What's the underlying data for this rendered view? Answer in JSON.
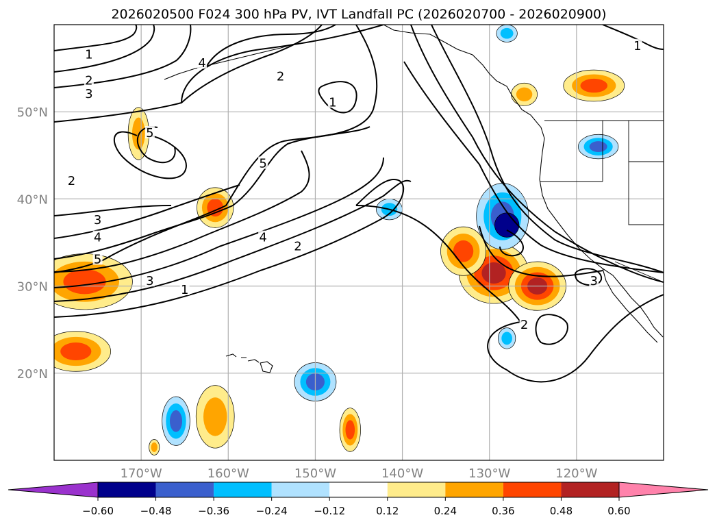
{
  "title": "2026020500 F024 300 hPa PV, IVT Landfall PC (2026020700 - 2026020900)",
  "map": {
    "lon_range": [
      -180,
      -110
    ],
    "lat_range": [
      10,
      60
    ],
    "lon_ticks": [
      {
        "value": -170,
        "label": "170°W"
      },
      {
        "value": -160,
        "label": "160°W"
      },
      {
        "value": -150,
        "label": "150°W"
      },
      {
        "value": -140,
        "label": "140°W"
      },
      {
        "value": -130,
        "label": "130°W"
      },
      {
        "value": -120,
        "label": "120°W"
      }
    ],
    "lat_ticks": [
      {
        "value": 20,
        "label": "20°N"
      },
      {
        "value": 30,
        "label": "30°N"
      },
      {
        "value": 40,
        "label": "40°N"
      },
      {
        "value": 50,
        "label": "50°N"
      }
    ]
  },
  "pv_contours": {
    "levels": [
      1,
      2,
      3,
      4,
      5
    ],
    "labels": [
      {
        "text": "1",
        "lon": -176,
        "lat": 56.5
      },
      {
        "text": "2",
        "lon": -176,
        "lat": 53.5
      },
      {
        "text": "3",
        "lon": -176,
        "lat": 52
      },
      {
        "text": "4",
        "lon": -163,
        "lat": 55.5
      },
      {
        "text": "2",
        "lon": -154,
        "lat": 54
      },
      {
        "text": "1",
        "lon": -148,
        "lat": 51
      },
      {
        "text": "5",
        "lon": -169,
        "lat": 47.5
      },
      {
        "text": "5",
        "lon": -156,
        "lat": 44
      },
      {
        "text": "2",
        "lon": -178,
        "lat": 42
      },
      {
        "text": "3",
        "lon": -175,
        "lat": 37.5
      },
      {
        "text": "4",
        "lon": -175,
        "lat": 35.5
      },
      {
        "text": "5",
        "lon": -175,
        "lat": 33
      },
      {
        "text": "4",
        "lon": -156,
        "lat": 35.5
      },
      {
        "text": "2",
        "lon": -152,
        "lat": 34.5
      },
      {
        "text": "3",
        "lon": -169,
        "lat": 30.5
      },
      {
        "text": "1",
        "lon": -165,
        "lat": 29.5
      },
      {
        "text": "1",
        "lon": -113,
        "lat": 57.5
      },
      {
        "text": "3",
        "lon": -118,
        "lat": 30.5
      },
      {
        "text": "2",
        "lon": -126,
        "lat": 25.5
      }
    ]
  },
  "ivt_pc": {
    "units": "",
    "colorbar": {
      "boundaries": [
        -0.72,
        -0.6,
        -0.48,
        -0.36,
        -0.24,
        -0.12,
        0.12,
        0.24,
        0.36,
        0.48,
        0.6,
        0.72
      ],
      "colors": [
        "#9a32cd",
        "#00008b",
        "#3a5fcd",
        "#00bfff",
        "#b0e2ff",
        "#ffffff",
        "#ffec8b",
        "#ffa500",
        "#ff4500",
        "#b22222",
        "#ff82ab"
      ],
      "tick_labels": [
        "−0.60",
        "−0.48",
        "−0.36",
        "−0.24",
        "−0.12",
        "0.12",
        "0.24",
        "0.36",
        "0.48",
        "0.60"
      ]
    },
    "blobs": [
      {
        "lon": -176.5,
        "lat": 30.5,
        "rlon": 5.5,
        "rlat": 3.2,
        "levels": [
          0.15,
          0.27,
          0.4
        ]
      },
      {
        "lon": -177.5,
        "lat": 22.5,
        "rlon": 4.0,
        "rlat": 2.3,
        "levels": [
          0.15,
          0.27,
          0.4
        ]
      },
      {
        "lon": -161.5,
        "lat": 39.0,
        "rlon": 2.1,
        "rlat": 2.3,
        "levels": [
          0.15,
          0.27,
          0.4
        ]
      },
      {
        "lon": -170.3,
        "lat": 47.5,
        "rlon": 1.2,
        "rlat": 3.0,
        "levels": [
          0.15,
          0.27
        ]
      },
      {
        "lon": -129.5,
        "lat": 31.5,
        "rlon": 4.0,
        "rlat": 3.5,
        "levels": [
          0.15,
          0.27,
          0.4,
          0.5
        ]
      },
      {
        "lon": -124.5,
        "lat": 30.0,
        "rlon": 3.3,
        "rlat": 2.8,
        "levels": [
          0.15,
          0.27,
          0.4,
          0.5
        ]
      },
      {
        "lon": -133.0,
        "lat": 34.0,
        "rlon": 2.6,
        "rlat": 2.8,
        "levels": [
          0.15,
          0.27,
          0.4
        ]
      },
      {
        "lon": -118.0,
        "lat": 53.0,
        "rlon": 3.5,
        "rlat": 1.8,
        "levels": [
          0.15,
          0.27,
          0.4
        ]
      },
      {
        "lon": -126.0,
        "lat": 52.0,
        "rlon": 1.5,
        "rlat": 1.3,
        "levels": [
          0.15,
          0.27
        ]
      },
      {
        "lon": -161.5,
        "lat": 15.0,
        "rlon": 2.2,
        "rlat": 3.6,
        "levels": [
          0.15,
          0.27
        ]
      },
      {
        "lon": -146.0,
        "lat": 13.5,
        "rlon": 1.2,
        "rlat": 2.5,
        "levels": [
          0.15,
          0.27,
          0.4
        ]
      },
      {
        "lon": -168.5,
        "lat": 11.5,
        "rlon": 0.6,
        "rlat": 0.9,
        "levels": [
          0.15,
          0.27
        ]
      },
      {
        "lon": -128.5,
        "lat": 38.0,
        "rlon": 3.0,
        "rlat": 3.8,
        "levels": [
          -0.15,
          -0.27,
          -0.4
        ]
      },
      {
        "lon": -128.0,
        "lat": 37.0,
        "rlon": 1.4,
        "rlat": 1.4,
        "levels": [
          -0.5,
          -0.6
        ]
      },
      {
        "lon": -117.5,
        "lat": 46.0,
        "rlon": 2.3,
        "rlat": 1.4,
        "levels": [
          -0.15,
          -0.27,
          -0.4
        ]
      },
      {
        "lon": -150.0,
        "lat": 19.0,
        "rlon": 2.4,
        "rlat": 2.2,
        "levels": [
          -0.15,
          -0.27,
          -0.4
        ]
      },
      {
        "lon": -166.0,
        "lat": 14.5,
        "rlon": 1.6,
        "rlat": 2.8,
        "levels": [
          -0.15,
          -0.27,
          -0.4
        ]
      },
      {
        "lon": -141.5,
        "lat": 38.8,
        "rlon": 1.5,
        "rlat": 1.2,
        "levels": [
          -0.15,
          -0.27
        ]
      },
      {
        "lon": -128.0,
        "lat": 24.0,
        "rlon": 1.0,
        "rlat": 1.2,
        "levels": [
          -0.15,
          -0.27
        ]
      },
      {
        "lon": -128.0,
        "lat": 59.0,
        "rlon": 1.2,
        "rlat": 1.0,
        "levels": [
          -0.15,
          -0.27
        ]
      }
    ]
  }
}
